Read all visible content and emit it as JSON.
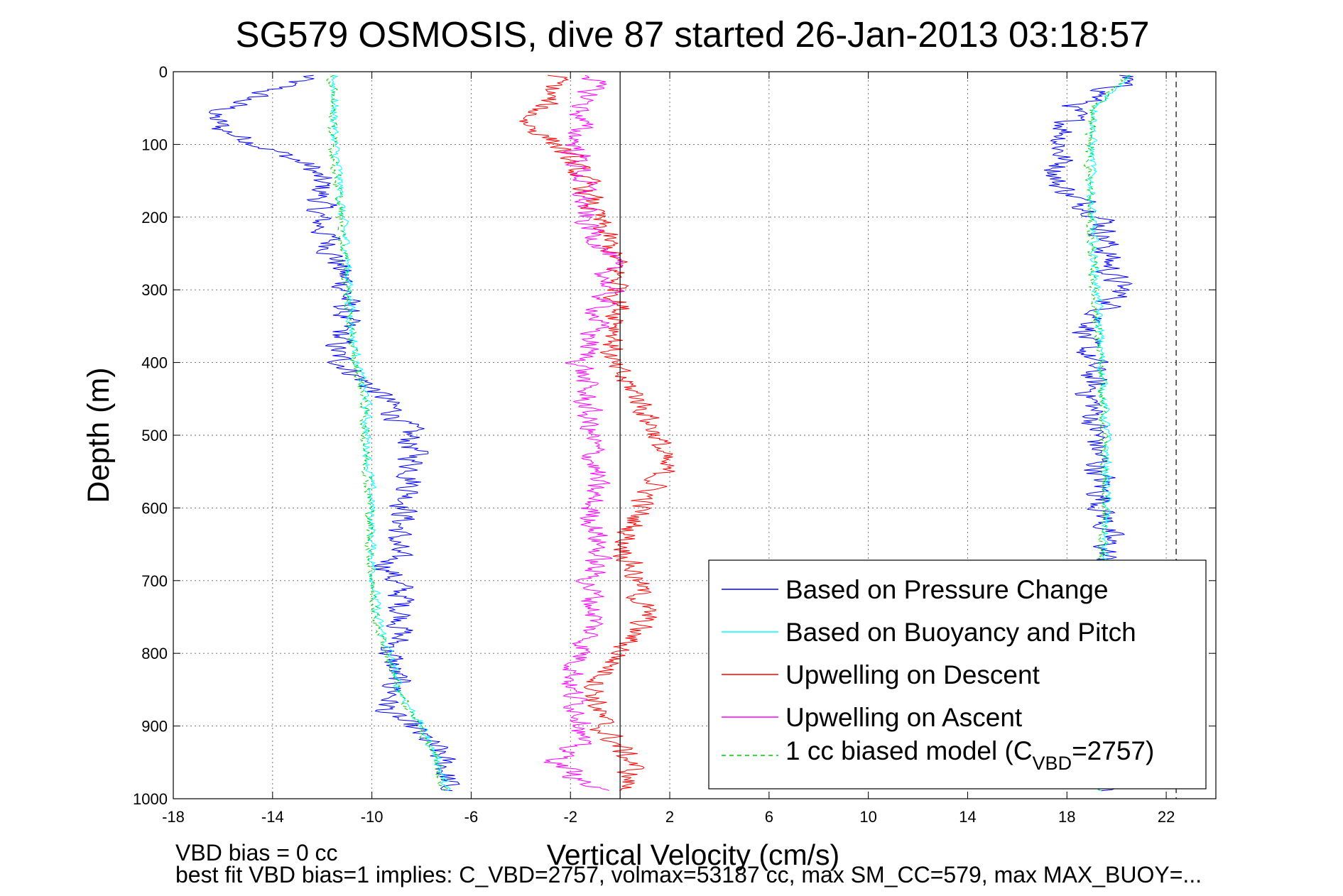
{
  "chart_data": {
    "type": "line",
    "title": "SG579 OSMOSIS, dive 87 started 26-Jan-2013 03:18:57",
    "xlabel": "Vertical Velocity (cm/s)",
    "ylabel": "Depth (m)",
    "xlim": [
      -18,
      24
    ],
    "ylim": [
      0,
      1000
    ],
    "y_reversed": true,
    "grid": true,
    "xticks": [
      -18,
      -14,
      -10,
      -6,
      -2,
      2,
      6,
      10,
      14,
      18,
      22
    ],
    "yticks": [
      0,
      100,
      200,
      300,
      400,
      500,
      600,
      700,
      800,
      900,
      1000
    ],
    "legend_position": "bottom-right",
    "zero_line_x": 0,
    "dashed_line_x": 22.4,
    "series": [
      {
        "name": "Based on Pressure Change",
        "color": "#0000ff",
        "style": "solid",
        "noise": 1.0,
        "points": [
          {
            "dive": "down",
            "depth": [
              5,
              30,
              60,
              80,
              100,
              130,
              160,
              200,
              250,
              300,
              350,
              390,
              420,
              450,
              480,
              520,
              560,
              600,
              640,
              680,
              720,
              760,
              800,
              850,
              880,
              900,
              930,
              960,
              990
            ],
            "x": [
              -12.5,
              -14.5,
              -16.5,
              -16.0,
              -14.5,
              -12.5,
              -12.0,
              -12.2,
              -11.5,
              -11.0,
              -11.2,
              -11.5,
              -10.5,
              -9.5,
              -8.8,
              -8.3,
              -8.3,
              -8.6,
              -9.0,
              -9.3,
              -8.8,
              -8.7,
              -9.3,
              -9.0,
              -9.5,
              -8.5,
              -7.5,
              -7.0,
              -7.0
            ]
          },
          {
            "dive": "up",
            "depth": [
              990,
              950,
              900,
              850,
              800,
              750,
              700,
              650,
              600,
              550,
              500,
              450,
              400,
              370,
              330,
              300,
              280,
              240,
              200,
              170,
              150,
              130,
              100,
              80,
              50,
              30,
              5
            ],
            "x": [
              19.3,
              19.3,
              19.3,
              19.3,
              19.3,
              19.3,
              19.3,
              19.6,
              19.5,
              19.3,
              19.2,
              19.0,
              19.0,
              18.6,
              19.5,
              20.2,
              19.8,
              19.6,
              19.5,
              18.2,
              17.5,
              17.8,
              17.8,
              18.0,
              18.2,
              19.5,
              20.5
            ]
          }
        ]
      },
      {
        "name": "Based on Buoyancy and Pitch",
        "color": "#00ffff",
        "style": "solid",
        "noise": 0.3,
        "points": [
          {
            "dive": "down",
            "depth": [
              5,
              50,
              100,
              150,
              200,
              250,
              300,
              350,
              400,
              450,
              500,
              550,
              600,
              650,
              700,
              750,
              800,
              850,
              900,
              950,
              990
            ],
            "x": [
              -11.5,
              -11.5,
              -11.5,
              -11.3,
              -11.2,
              -11.0,
              -10.9,
              -10.8,
              -10.6,
              -10.2,
              -10.2,
              -10.1,
              -10.0,
              -10.0,
              -9.9,
              -9.8,
              -9.3,
              -8.9,
              -8.0,
              -7.3,
              -7.0
            ]
          },
          {
            "dive": "up",
            "depth": [
              990,
              950,
              900,
              850,
              800,
              750,
              700,
              650,
              600,
              550,
              500,
              450,
              400,
              350,
              300,
              250,
              200,
              150,
              100,
              50,
              5
            ],
            "x": [
              19.3,
              19.4,
              19.5,
              19.5,
              19.5,
              19.5,
              19.5,
              19.5,
              19.6,
              19.6,
              19.6,
              19.5,
              19.4,
              19.3,
              19.2,
              19.1,
              19.0,
              19.0,
              19.0,
              19.2,
              20.5
            ]
          }
        ]
      },
      {
        "name": "Upwelling on Descent",
        "color": "#ff0000",
        "style": "solid",
        "noise": 0.9,
        "points": [
          {
            "dive": "down",
            "depth": [
              5,
              40,
              70,
              100,
              150,
              200,
              250,
              300,
              350,
              400,
              450,
              500,
              550,
              600,
              650,
              700,
              750,
              800,
              850,
              900,
              950,
              990
            ],
            "x": [
              -2.5,
              -3.0,
              -3.8,
              -2.5,
              -1.5,
              -1.0,
              -0.3,
              0.0,
              0.0,
              -0.5,
              0.8,
              1.5,
              1.7,
              0.8,
              0.2,
              0.7,
              1.0,
              0.0,
              -1.0,
              -0.8,
              0.5,
              0.2
            ]
          }
        ]
      },
      {
        "name": "Upwelling on Ascent",
        "color": "#ff00ff",
        "style": "solid",
        "noise": 0.9,
        "points": [
          {
            "dive": "up",
            "depth": [
              990,
              950,
              900,
              850,
              800,
              750,
              700,
              650,
              600,
              550,
              500,
              450,
              400,
              350,
              300,
              250,
              200,
              150,
              100,
              50,
              5
            ],
            "x": [
              -1.0,
              -2.5,
              -1.3,
              -2.0,
              -1.5,
              -1.0,
              -1.2,
              -0.8,
              -1.2,
              -1.0,
              -1.2,
              -1.4,
              -1.5,
              -1.0,
              -0.5,
              -0.5,
              -1.5,
              -1.5,
              -1.8,
              -1.5,
              -1.0
            ]
          }
        ]
      },
      {
        "name": "1 cc biased model (C_VBD=2757)",
        "color": "#00cc00",
        "style": "dashed",
        "noise": 0.3,
        "points": [
          {
            "dive": "down",
            "depth": [
              5,
              50,
              100,
              150,
              200,
              250,
              300,
              350,
              400,
              450,
              500,
              550,
              600,
              650,
              700,
              750,
              800,
              850,
              900,
              950,
              990
            ],
            "x": [
              -11.6,
              -11.6,
              -11.6,
              -11.4,
              -11.3,
              -11.1,
              -11.0,
              -10.9,
              -10.7,
              -10.3,
              -10.3,
              -10.2,
              -10.1,
              -10.1,
              -10.0,
              -9.9,
              -9.4,
              -9.0,
              -8.1,
              -7.4,
              -7.1
            ]
          },
          {
            "dive": "up",
            "depth": [
              990,
              950,
              900,
              850,
              800,
              750,
              700,
              650,
              600,
              550,
              500,
              450,
              400,
              350,
              300,
              250,
              200,
              150,
              100,
              50,
              5
            ],
            "x": [
              19.2,
              19.3,
              19.4,
              19.4,
              19.4,
              19.4,
              19.4,
              19.4,
              19.5,
              19.5,
              19.5,
              19.4,
              19.3,
              19.2,
              19.1,
              19.0,
              18.9,
              18.9,
              18.9,
              19.1,
              20.4
            ]
          }
        ]
      }
    ]
  },
  "legend": {
    "entries": [
      {
        "text": "Based on Pressure Change",
        "color": "#0000ff",
        "style": "solid"
      },
      {
        "text": "Based on Buoyancy and Pitch",
        "color": "#00ffff",
        "style": "solid"
      },
      {
        "text": "Upwelling on Descent",
        "color": "#ff0000",
        "style": "solid"
      },
      {
        "text": "Upwelling on Ascent",
        "color": "#ff00ff",
        "style": "solid"
      }
    ],
    "model_entry": {
      "prefix": "1 cc biased model (C",
      "sub": "VBD",
      "suffix": "=2757)",
      "color": "#00cc00",
      "style": "dashed"
    }
  },
  "footer": {
    "line1": "VBD bias = 0 cc",
    "line2": "best fit VBD bias=1 implies: C_VBD=2757, volmax=53187 cc, max SM_CC=579, max MAX_BUOY=..."
  }
}
